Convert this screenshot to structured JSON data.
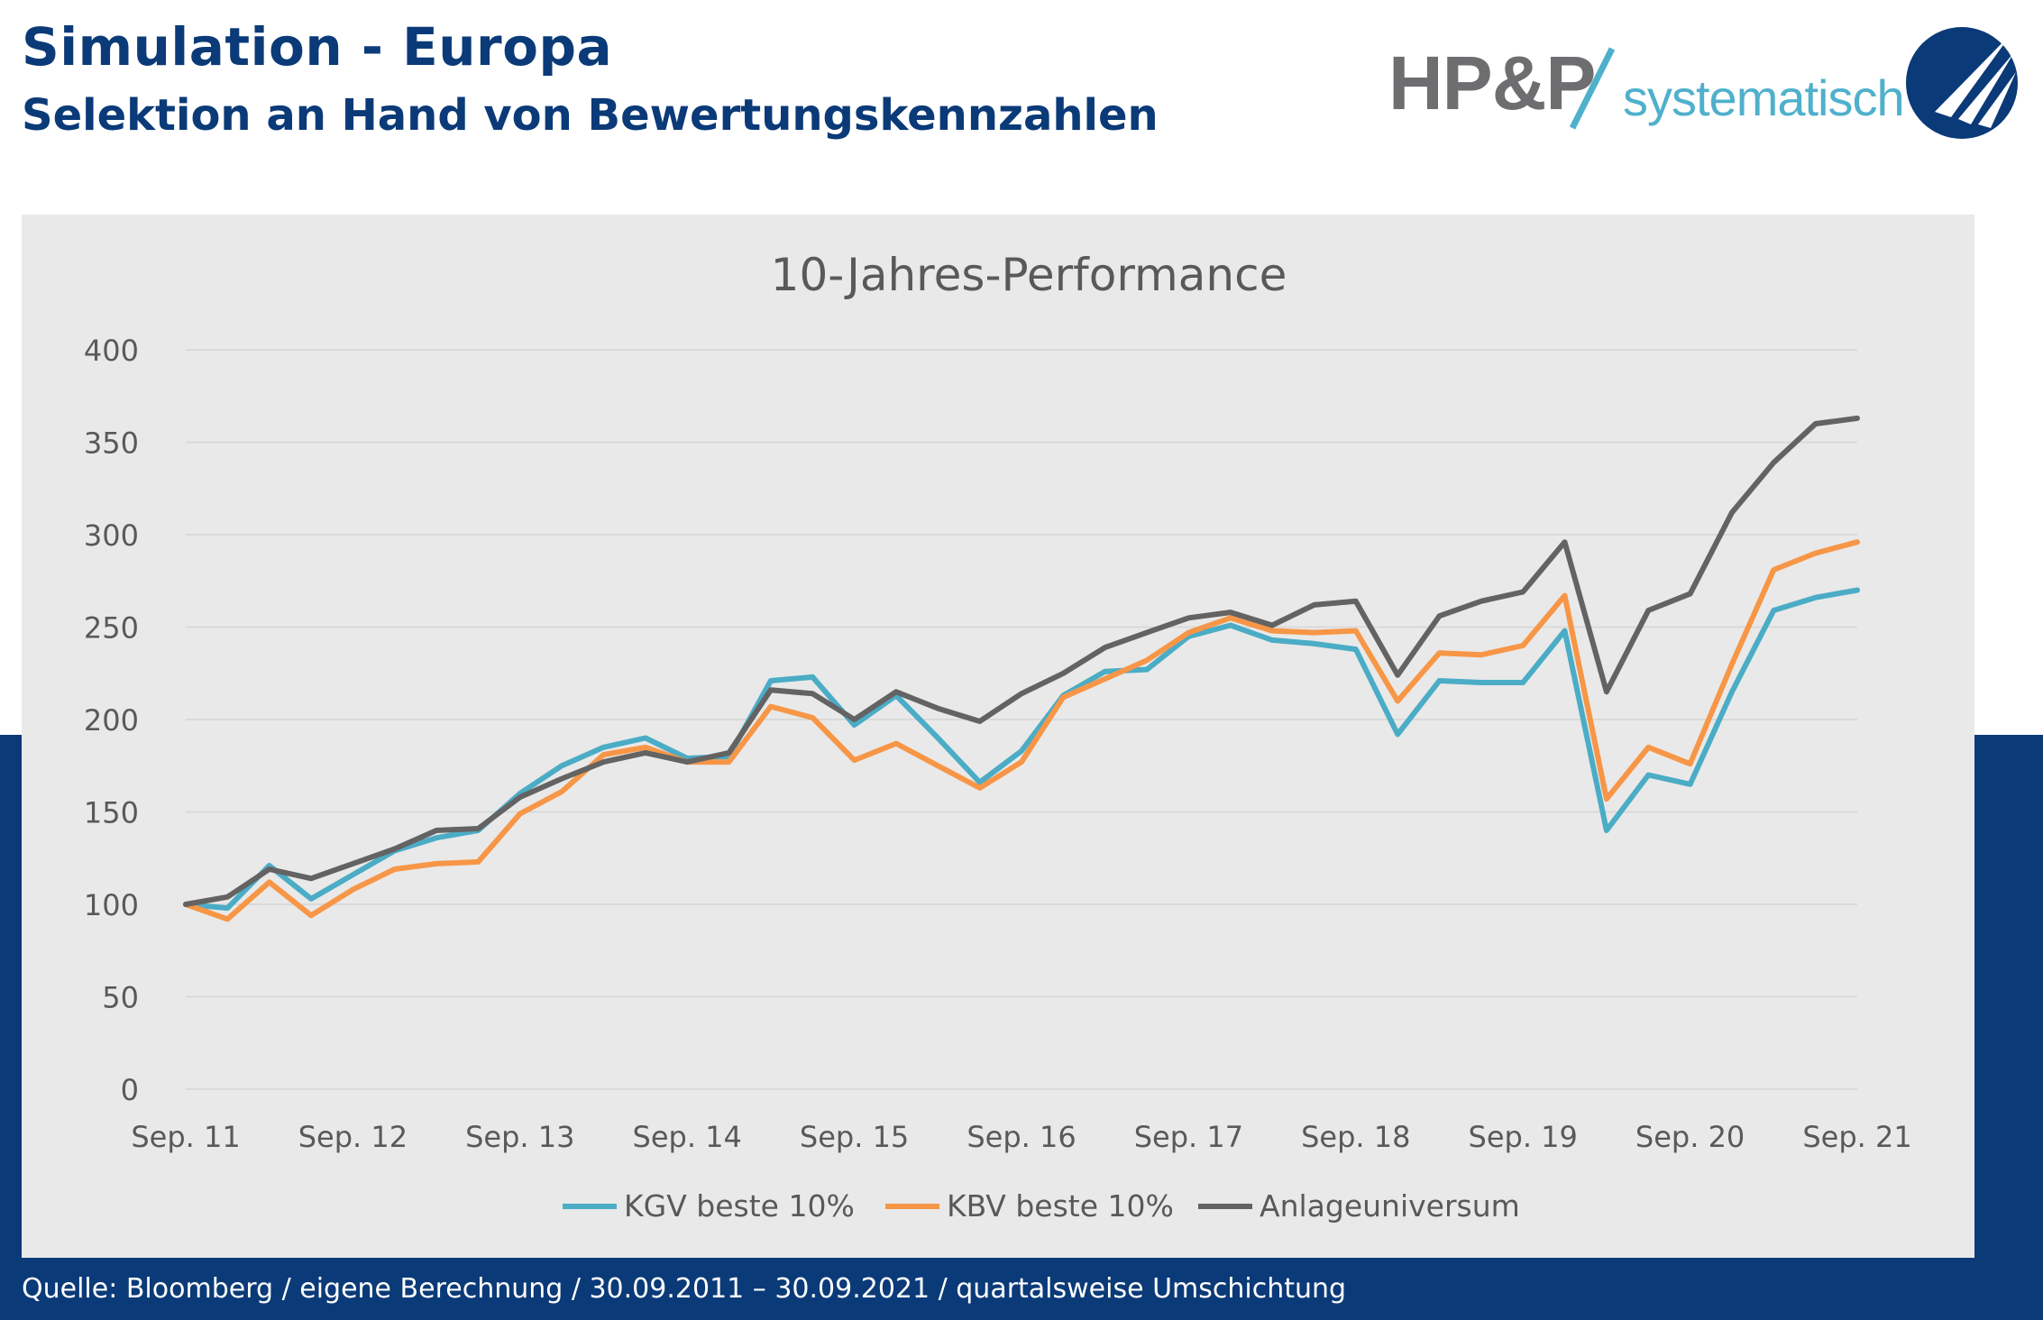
{
  "header": {
    "title": "Simulation - Europa",
    "subtitle": "Selektion an Hand von Bewertungskennzahlen",
    "logo_brand": "HP&P",
    "logo_tagline": "systematisch"
  },
  "footer": {
    "source": "Quelle: Bloomberg / eigene Berechnung / 30.09.2011 – 30.09.2021 / quartalsweise Umschichtung"
  },
  "colors": {
    "brand_navy": "#0b3a78",
    "logo_gray": "#6e6e70",
    "logo_cyan": "#4fb0cc",
    "panel_bg": "#e9e9e9",
    "grid": "#d6d6d6",
    "axis_text": "#595959"
  },
  "icons": {
    "emblem": "hpp-emblem-icon"
  },
  "chart_data": {
    "type": "line",
    "title": "10-Jahres-Performance",
    "xlabel": "",
    "ylabel": "",
    "ylim": [
      0,
      400
    ],
    "yticks": [
      0,
      50,
      100,
      150,
      200,
      250,
      300,
      350,
      400
    ],
    "x_tick_labels": [
      "Sep. 11",
      "Sep. 12",
      "Sep. 13",
      "Sep. 14",
      "Sep. 15",
      "Sep. 16",
      "Sep. 17",
      "Sep. 18",
      "Sep. 19",
      "Sep. 20",
      "Sep. 21"
    ],
    "grid": true,
    "legend_position": "bottom-center",
    "series": [
      {
        "name": "KGV beste 10%",
        "color": "#4bacc6",
        "values": [
          100,
          98,
          121,
          103,
          116,
          129,
          136,
          140,
          160,
          175,
          185,
          190,
          179,
          180,
          221,
          223,
          197,
          213,
          190,
          166,
          183,
          213,
          226,
          227,
          245,
          251,
          243,
          241,
          238,
          192,
          221,
          220,
          220,
          248,
          140,
          170,
          165,
          215,
          259,
          266,
          270
        ]
      },
      {
        "name": "KBV beste 10%",
        "color": "#f79646",
        "values": [
          100,
          92,
          112,
          94,
          108,
          119,
          122,
          123,
          149,
          161,
          181,
          185,
          177,
          177,
          207,
          201,
          178,
          187,
          175,
          163,
          177,
          212,
          222,
          232,
          247,
          255,
          248,
          247,
          248,
          210,
          236,
          235,
          240,
          267,
          157,
          185,
          176,
          230,
          281,
          290,
          296
        ]
      },
      {
        "name": "Anlageuniversum",
        "color": "#636363",
        "values": [
          100,
          104,
          119,
          114,
          122,
          130,
          140,
          141,
          158,
          168,
          177,
          182,
          177,
          182,
          216,
          214,
          200,
          215,
          206,
          199,
          214,
          225,
          239,
          247,
          255,
          258,
          251,
          262,
          264,
          224,
          256,
          264,
          269,
          296,
          215,
          259,
          268,
          312,
          339,
          360,
          363
        ]
      }
    ]
  }
}
